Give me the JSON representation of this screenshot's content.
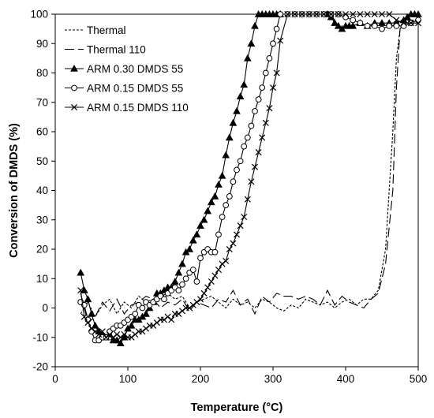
{
  "chart_data": {
    "type": "line",
    "xlabel": "Temperature (°C)",
    "ylabel": "Conversion of DMDS (%)",
    "xlim": [
      0,
      500
    ],
    "ylim": [
      -20,
      100
    ],
    "xticks": [
      0,
      100,
      200,
      300,
      400,
      500
    ],
    "yticks": [
      -20,
      -10,
      0,
      10,
      20,
      30,
      40,
      50,
      60,
      70,
      80,
      90,
      100
    ],
    "grid": false,
    "legend_position": "top-left",
    "series": [
      {
        "name": "Thermal",
        "style": "short-dash",
        "marker": "none",
        "x": [
          35,
          45,
          55,
          65,
          75,
          85,
          95,
          105,
          115,
          125,
          135,
          145,
          155,
          165,
          175,
          185,
          195,
          205,
          215,
          225,
          235,
          245,
          255,
          265,
          275,
          285,
          295,
          305,
          315,
          325,
          335,
          345,
          355,
          365,
          375,
          385,
          395,
          405,
          415,
          425,
          435,
          445,
          455,
          465,
          470,
          475,
          480,
          485,
          490,
          495,
          500
        ],
        "y": [
          -2,
          2,
          -3,
          1,
          3,
          -2,
          2,
          0,
          4,
          2,
          3,
          4,
          5,
          3,
          4,
          0,
          2,
          3,
          4,
          2,
          0,
          3,
          1,
          2,
          0,
          3,
          2,
          0,
          -1,
          1,
          0,
          3,
          2,
          1,
          2,
          0,
          2,
          3,
          1,
          3,
          3,
          6,
          20,
          60,
          85,
          95,
          97,
          98,
          98,
          98,
          98
        ]
      },
      {
        "name": "Thermal 110",
        "style": "long-dash",
        "marker": "none",
        "x": [
          35,
          45,
          55,
          65,
          75,
          85,
          95,
          105,
          115,
          125,
          135,
          145,
          155,
          165,
          175,
          185,
          195,
          205,
          215,
          225,
          235,
          245,
          255,
          265,
          275,
          285,
          295,
          305,
          315,
          325,
          335,
          345,
          355,
          365,
          375,
          385,
          395,
          405,
          415,
          425,
          435,
          445,
          455,
          465,
          470,
          475,
          480,
          485,
          490,
          495,
          500
        ],
        "y": [
          5,
          -5,
          -3,
          2,
          -1,
          3,
          -2,
          1,
          2,
          4,
          3,
          0,
          2,
          1,
          3,
          -1,
          2,
          1,
          0,
          3,
          2,
          6,
          1,
          3,
          -2,
          4,
          2,
          5,
          4,
          4,
          3,
          4,
          3,
          1,
          6,
          1,
          4,
          2,
          1,
          0,
          3,
          5,
          15,
          40,
          75,
          95,
          97,
          97,
          98,
          98,
          98
        ]
      },
      {
        "name": "ARM 0.30 DMDS 55",
        "style": "solid",
        "marker": "filled-triangle",
        "x": [
          35,
          40,
          45,
          50,
          55,
          60,
          65,
          70,
          75,
          80,
          85,
          90,
          95,
          100,
          105,
          110,
          115,
          120,
          125,
          130,
          135,
          140,
          145,
          150,
          155,
          160,
          165,
          170,
          175,
          180,
          185,
          190,
          195,
          200,
          205,
          210,
          215,
          220,
          225,
          230,
          235,
          240,
          245,
          250,
          255,
          260,
          265,
          270,
          275,
          280,
          285,
          290,
          295,
          300,
          305,
          310,
          375,
          380,
          385,
          390,
          395,
          400,
          405,
          410,
          420,
          430,
          440,
          450,
          460,
          470,
          480,
          485,
          490,
          495,
          500
        ],
        "y": [
          12,
          6,
          3,
          -2,
          -6,
          -8,
          -9,
          -10,
          -9,
          -11,
          -11,
          -12,
          -10,
          -7,
          -6,
          -4,
          -4,
          -3,
          -2,
          0,
          2,
          5,
          5,
          6,
          7,
          7,
          9,
          12,
          15,
          19,
          20,
          23,
          25,
          28,
          30,
          33,
          36,
          38,
          42,
          45,
          52,
          58,
          63,
          67,
          72,
          76,
          85,
          90,
          96,
          100,
          100,
          100,
          100,
          100,
          100,
          100,
          100,
          99,
          97,
          96,
          95,
          96,
          96,
          96,
          97,
          96,
          97,
          97,
          97,
          97,
          98,
          99,
          100,
          100,
          100
        ]
      },
      {
        "name": "ARM 0.15 DMDS 55",
        "style": "solid",
        "marker": "open-circle",
        "x": [
          35,
          40,
          45,
          50,
          55,
          60,
          65,
          70,
          75,
          80,
          85,
          90,
          95,
          100,
          105,
          110,
          115,
          120,
          125,
          130,
          135,
          140,
          145,
          150,
          155,
          160,
          165,
          170,
          175,
          180,
          185,
          190,
          195,
          200,
          205,
          210,
          215,
          220,
          225,
          230,
          235,
          240,
          245,
          250,
          255,
          260,
          265,
          270,
          275,
          280,
          285,
          290,
          295,
          300,
          305,
          310,
          320,
          330,
          340,
          350,
          360,
          370,
          380,
          390,
          400,
          410,
          420,
          430,
          440,
          450,
          460,
          470,
          480,
          490,
          500
        ],
        "y": [
          2,
          1,
          -4,
          -8,
          -11,
          -11,
          -10,
          -10,
          -8,
          -7,
          -6,
          -6,
          -5,
          -4,
          -3,
          -2,
          1,
          0,
          2,
          1,
          2,
          3,
          4,
          3,
          5,
          6,
          7,
          6,
          8,
          10,
          12,
          13,
          9,
          17,
          19,
          20,
          19,
          19,
          25,
          31,
          35,
          38,
          43,
          47,
          50,
          55,
          58,
          62,
          67,
          71,
          75,
          80,
          85,
          90,
          95,
          100,
          100,
          100,
          100,
          100,
          100,
          100,
          100,
          100,
          99,
          98,
          97,
          96,
          96,
          95,
          96,
          96,
          96,
          97,
          98
        ]
      },
      {
        "name": "ARM 0.15 DMDS 110",
        "style": "solid",
        "marker": "x",
        "x": [
          35,
          40,
          45,
          50,
          55,
          60,
          65,
          70,
          75,
          80,
          85,
          90,
          95,
          100,
          105,
          110,
          115,
          120,
          125,
          130,
          135,
          140,
          145,
          150,
          155,
          160,
          165,
          170,
          175,
          180,
          185,
          190,
          195,
          200,
          205,
          210,
          215,
          220,
          225,
          230,
          235,
          240,
          245,
          250,
          255,
          260,
          265,
          270,
          275,
          280,
          285,
          290,
          295,
          300,
          305,
          310,
          320,
          330,
          340,
          350,
          360,
          370,
          380,
          390,
          400,
          410,
          420,
          430,
          440,
          450,
          460,
          470,
          480,
          490,
          500
        ],
        "y": [
          6,
          -3,
          -5,
          -7,
          -8,
          -9,
          -8,
          -10,
          -9,
          -10,
          -9,
          -10,
          -9,
          -10,
          -10,
          -9,
          -8,
          -8,
          -7,
          -6,
          -6,
          -5,
          -4,
          -4,
          -3,
          -4,
          -2,
          -2,
          -1,
          0,
          0,
          1,
          2,
          3,
          5,
          7,
          9,
          11,
          13,
          15,
          16,
          20,
          22,
          25,
          28,
          31,
          37,
          43,
          48,
          53,
          58,
          63,
          68,
          75,
          80,
          91,
          100,
          100,
          100,
          100,
          100,
          100,
          100,
          100,
          100,
          100,
          100,
          100,
          100,
          100,
          100,
          98,
          97,
          97,
          97
        ]
      }
    ]
  }
}
